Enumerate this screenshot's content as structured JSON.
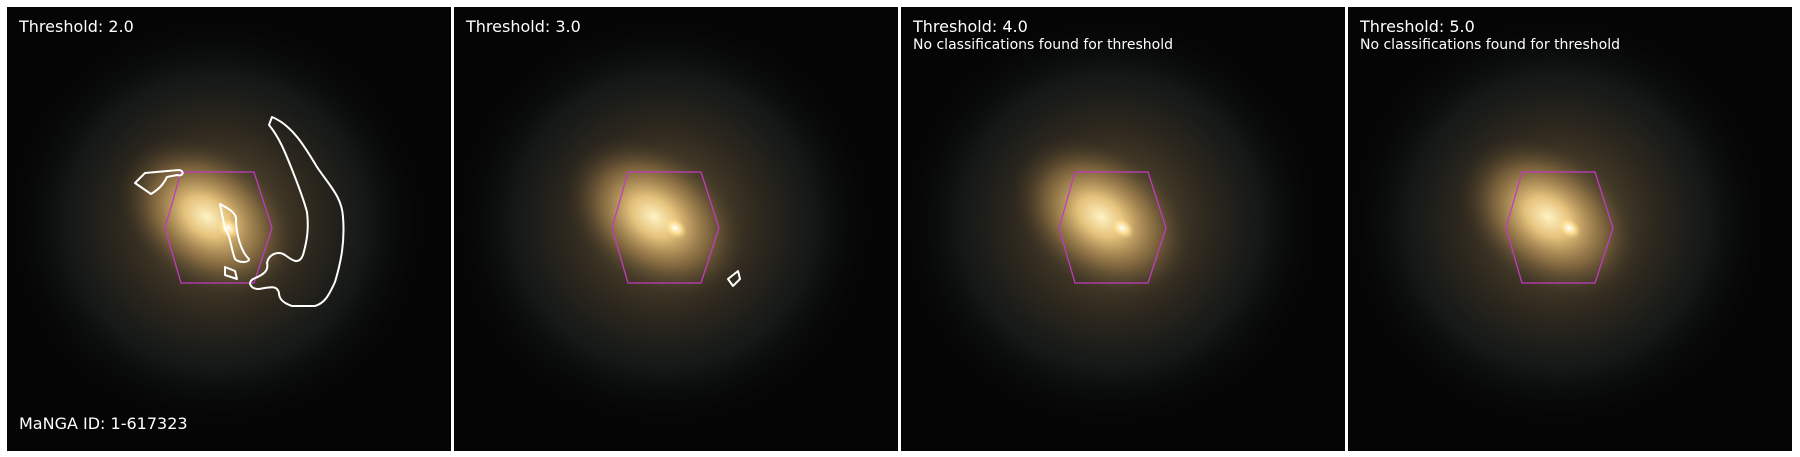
{
  "manga_id_label": "MaNGA ID: 1-617323",
  "colors": {
    "background": "#050505",
    "hexagon": "#c23bbf",
    "contour": "#ffffff",
    "galaxy_core": "#ffe8a8",
    "galaxy_disk": "#c4a56a"
  },
  "panels": [
    {
      "threshold_label": "Threshold: 2.0",
      "note": "",
      "has_contours": true
    },
    {
      "threshold_label": "Threshold: 3.0",
      "note": "",
      "has_contours": true
    },
    {
      "threshold_label": "Threshold: 4.0",
      "note": "No classifications found for threshold",
      "has_contours": false
    },
    {
      "threshold_label": "Threshold: 5.0",
      "note": "No classifications found for threshold",
      "has_contours": false
    }
  ]
}
